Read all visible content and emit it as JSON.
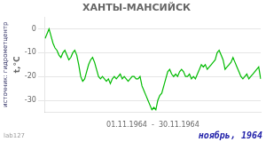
{
  "chart_data": {
    "type": "line",
    "title": "ХАНТЫ-МАНСИЙСК",
    "xlabel": "01.11.1964  -  30.11.1964",
    "ylabel": "t,°C",
    "annotations": [
      "ноябрь, 1964",
      "источник: гидрометцентр",
      "lab127"
    ],
    "categories": [
      null,
      null,
      null,
      null,
      null,
      null,
      null,
      null,
      null,
      null,
      null,
      null,
      null,
      null,
      null,
      null,
      null,
      null,
      null,
      null,
      null,
      null,
      null,
      null,
      null,
      null,
      null,
      null,
      null,
      null,
      null,
      null,
      null,
      null,
      null,
      null,
      null,
      null,
      null,
      null,
      null,
      null,
      null,
      null,
      null,
      null,
      null,
      null,
      null,
      null,
      null,
      null,
      null,
      null,
      null,
      null,
      null,
      null,
      null,
      null,
      null,
      null,
      null,
      null,
      null,
      null,
      null,
      null,
      null,
      null,
      null,
      null,
      null,
      null,
      null,
      null,
      null,
      null,
      null,
      null,
      null,
      null,
      null,
      null,
      null,
      null,
      null,
      null,
      null,
      null,
      null,
      null,
      null,
      null,
      null,
      null,
      null,
      null,
      null,
      null,
      null,
      null,
      null,
      null,
      null,
      null,
      null,
      null,
      null,
      null
    ],
    "values": [
      -4,
      -2,
      0,
      -3,
      -6,
      -8,
      -9,
      -11,
      -12,
      -10,
      -9,
      -11,
      -13,
      -12,
      -10,
      -9,
      -11,
      -15,
      -20,
      -22,
      -21,
      -18,
      -15,
      -13,
      -12,
      -14,
      -17,
      -20,
      -21,
      -20,
      -21,
      -22,
      -21,
      -23,
      -21,
      -20,
      -21,
      -20,
      -19,
      -21,
      -20,
      -21,
      -22,
      -21,
      -20,
      -20,
      -21,
      -21,
      -20,
      -24,
      -26,
      -28,
      -30,
      -32,
      -34,
      -33,
      -34,
      -30,
      -28,
      -27,
      -24,
      -21,
      -18,
      -17,
      -19,
      -20,
      -19,
      -20,
      -18,
      -17,
      -18,
      -20,
      -20,
      -19,
      -21,
      -20,
      -21,
      -19,
      -17,
      -15,
      -16,
      -15,
      -17,
      -16,
      -15,
      -14,
      -13,
      -10,
      -9,
      -11,
      -13,
      -17,
      -16,
      -15,
      -14,
      -12,
      -14,
      -16,
      -18,
      -20,
      -21,
      -20,
      -19,
      -21,
      -20,
      -19,
      -18,
      -17,
      -16,
      -21
    ],
    "color": "#00bb00",
    "ylim": [
      -35,
      5
    ],
    "yticks": [
      0,
      -10,
      -20,
      -30
    ],
    "grid": true,
    "tick_labels": "y"
  }
}
